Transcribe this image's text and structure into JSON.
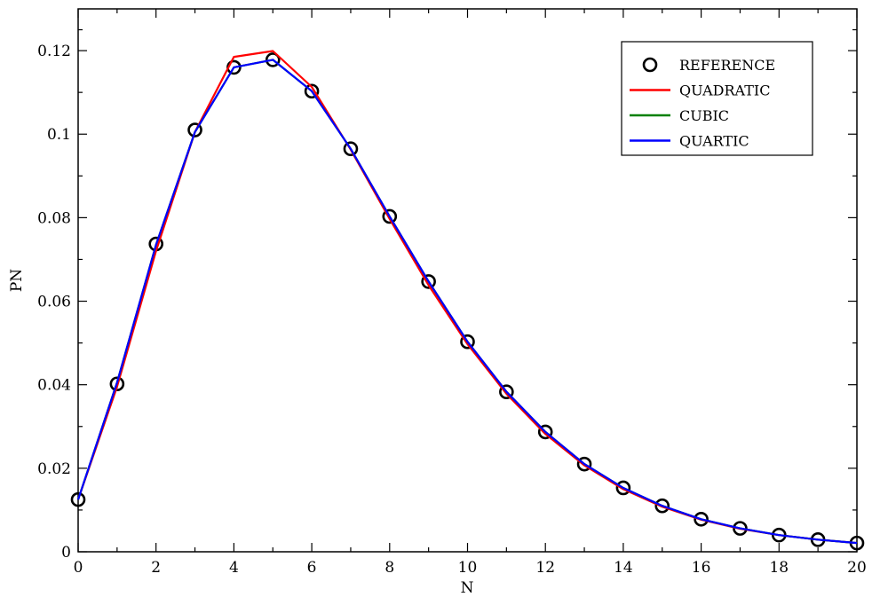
{
  "chart_data": {
    "type": "line",
    "title": "",
    "xlabel": "N",
    "ylabel": "PN",
    "xlim": [
      0,
      20
    ],
    "ylim": [
      0,
      0.13
    ],
    "xticks": [
      0,
      2,
      4,
      6,
      8,
      10,
      12,
      14,
      16,
      18,
      20
    ],
    "xtick_labels": [
      "0",
      "2",
      "4",
      "6",
      "8",
      "10",
      "12",
      "14",
      "16",
      "18",
      "20"
    ],
    "yticks": [
      0,
      0.02,
      0.04,
      0.06,
      0.08,
      0.1,
      0.12
    ],
    "ytick_labels": [
      "0",
      "0.02",
      "0.04",
      "0.06",
      "0.08",
      "0.1",
      "0.12"
    ],
    "grid": false,
    "legend_position": "top-right",
    "x": [
      0,
      1,
      2,
      3,
      4,
      5,
      6,
      7,
      8,
      9,
      10,
      11,
      12,
      13,
      14,
      15,
      16,
      17,
      18,
      19,
      20
    ],
    "series": [
      {
        "name": "REFERENCE",
        "style": "markers",
        "marker": "circle",
        "color": "#000000",
        "values": [
          0.0125,
          0.0402,
          0.0737,
          0.101,
          0.116,
          0.1178,
          0.1103,
          0.0965,
          0.0803,
          0.0647,
          0.0503,
          0.0383,
          0.0287,
          0.021,
          0.0153,
          0.011,
          0.0078,
          0.0056,
          0.004,
          0.0029,
          0.0021
        ]
      },
      {
        "name": "QUADRATIC",
        "style": "line",
        "color": "#ff0000",
        "values": [
          0.0125,
          0.0395,
          0.072,
          0.1005,
          0.1185,
          0.1199,
          0.1113,
          0.0963,
          0.0797,
          0.0638,
          0.0497,
          0.0378,
          0.0282,
          0.0207,
          0.015,
          0.0108,
          0.0077,
          0.0055,
          0.004,
          0.0029,
          0.0021
        ]
      },
      {
        "name": "CUBIC",
        "style": "line",
        "color": "#008000",
        "values": [
          0.0125,
          0.0405,
          0.0735,
          0.1005,
          0.116,
          0.1178,
          0.1103,
          0.0965,
          0.0803,
          0.0647,
          0.0503,
          0.0383,
          0.0287,
          0.021,
          0.0153,
          0.011,
          0.0078,
          0.0056,
          0.004,
          0.0029,
          0.0021
        ]
      },
      {
        "name": "QUARTIC",
        "style": "line",
        "color": "#0000ff",
        "values": [
          0.0125,
          0.0405,
          0.0735,
          0.1005,
          0.116,
          0.1178,
          0.1103,
          0.0965,
          0.0803,
          0.0647,
          0.0503,
          0.0383,
          0.0287,
          0.021,
          0.0153,
          0.011,
          0.0078,
          0.0056,
          0.004,
          0.0029,
          0.0021
        ]
      }
    ]
  }
}
